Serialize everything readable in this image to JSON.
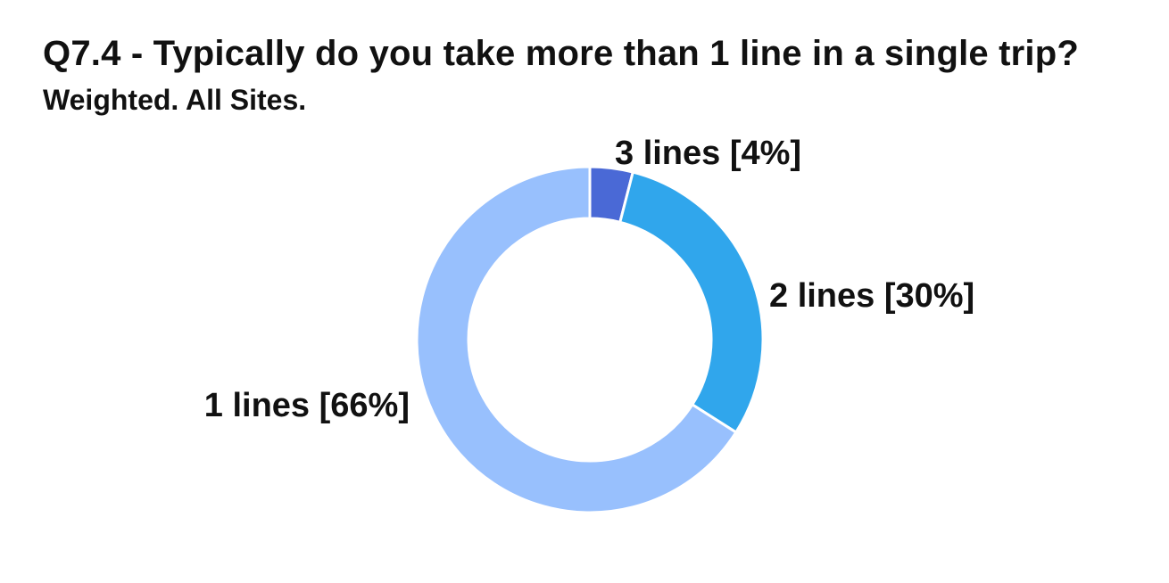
{
  "chart_data": {
    "type": "pie",
    "variant": "donut",
    "title": "Q7.4 - Typically do you take more than 1 line in a single trip?",
    "subtitle": "Weighted. All Sites.",
    "slices": [
      {
        "label": "3 lines [4%]",
        "category": "3 lines",
        "value": 4,
        "color": "#4a69d6"
      },
      {
        "label": "2 lines [30%]",
        "category": "2 lines",
        "value": 30,
        "color": "#30a6ec"
      },
      {
        "label": "1 lines [66%]",
        "category": "1 lines",
        "value": 66,
        "color": "#98c0fd"
      }
    ],
    "start": "top",
    "direction": "clockwise",
    "legend": "none"
  }
}
